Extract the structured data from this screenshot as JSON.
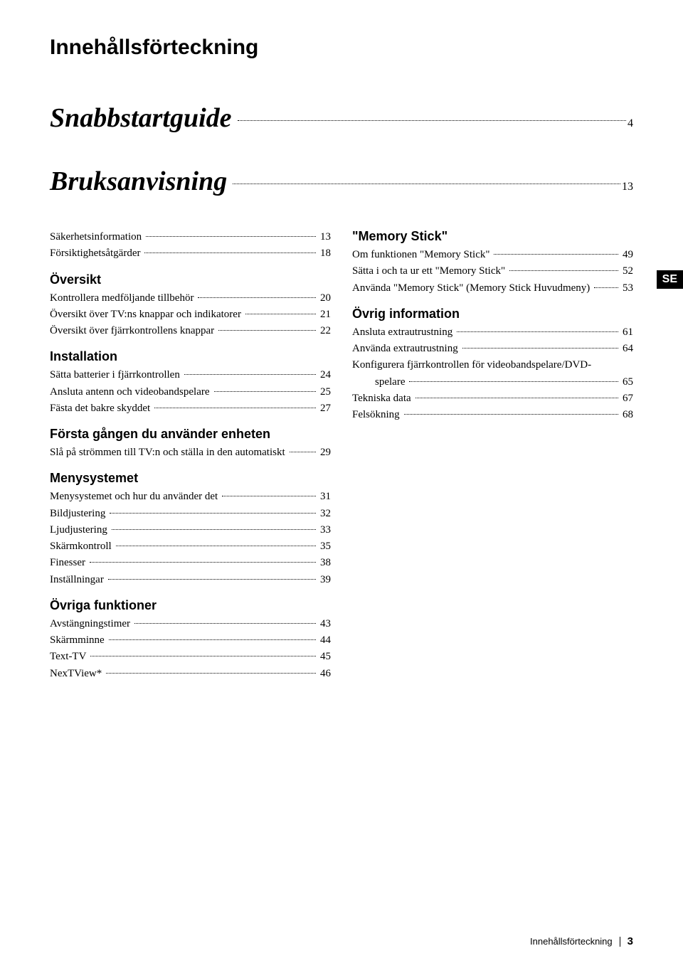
{
  "title": "Innehållsförteckning",
  "part1": {
    "label": "Snabbstartguide",
    "page": "4"
  },
  "part2": {
    "label": "Bruksanvisning",
    "page": "13"
  },
  "se_tab": "SE",
  "left": {
    "pre": [
      {
        "label": "Säkerhetsinformation",
        "page": "13"
      },
      {
        "label": "Försiktighetsåtgärder",
        "page": "18"
      }
    ],
    "sec1_title": "Översikt",
    "sec1": [
      {
        "label": "Kontrollera medföljande tillbehör",
        "page": "20"
      },
      {
        "label": "Översikt över TV:ns knappar och indikatorer",
        "page": "21"
      },
      {
        "label": "Översikt över fjärrkontrollens knappar",
        "page": "22"
      }
    ],
    "sec2_title": "Installation",
    "sec2": [
      {
        "label": "Sätta batterier i fjärrkontrollen",
        "page": "24"
      },
      {
        "label": "Ansluta antenn och videobandspelare",
        "page": "25"
      },
      {
        "label": "Fästa det bakre skyddet",
        "page": "27"
      }
    ],
    "sec3_title": "Första gången du använder enheten",
    "sec3": [
      {
        "label": "Slå på strömmen till TV:n och ställa in den automatiskt",
        "page": "29"
      }
    ],
    "sec4_title": "Menysystemet",
    "sec4": [
      {
        "label": "Menysystemet och hur du använder det",
        "page": "31"
      },
      {
        "label": "Bildjustering",
        "page": "32"
      },
      {
        "label": "Ljudjustering",
        "page": "33"
      },
      {
        "label": "Skärmkontroll",
        "page": "35"
      },
      {
        "label": "Finesser",
        "page": "38"
      },
      {
        "label": "Inställningar",
        "page": "39"
      }
    ],
    "sec5_title": "Övriga funktioner",
    "sec5": [
      {
        "label": "Avstängningstimer",
        "page": "43"
      },
      {
        "label": "Skärmminne",
        "page": "44"
      },
      {
        "label": "Text-TV",
        "page": "45"
      },
      {
        "label": "NexTView*",
        "page": "46"
      }
    ]
  },
  "right": {
    "sec1_title": "\"Memory Stick\"",
    "sec1": [
      {
        "label": "Om funktionen \"Memory Stick\"",
        "page": "49"
      },
      {
        "label": "Sätta i och ta ur ett \"Memory Stick\"",
        "page": "52"
      },
      {
        "label": "Använda \"Memory Stick\" (Memory Stick Huvudmeny)",
        "page": "53"
      }
    ],
    "sec2_title": "Övrig information",
    "sec2": [
      {
        "label": "Ansluta extrautrustning",
        "page": "61"
      },
      {
        "label": "Använda extrautrustning",
        "page": "64"
      }
    ],
    "wrap_line1": "Konfigurera fjärrkontrollen för videobandspelare/DVD-",
    "wrap_line2_label": "spelare",
    "wrap_line2_page": "65",
    "sec2b": [
      {
        "label": "Tekniska data",
        "page": "67"
      },
      {
        "label": "Felsökning",
        "page": "68"
      }
    ]
  },
  "footer": {
    "text": "Innehållsförteckning",
    "page": "3"
  }
}
